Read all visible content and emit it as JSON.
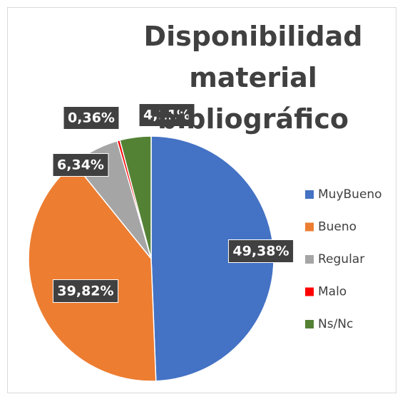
{
  "chart_data": {
    "type": "pie",
    "title": "Disponibilidad material bibliográfico",
    "categories": [
      "MuyBueno",
      "Bueno",
      "Regular",
      "Malo",
      "Ns/Nc"
    ],
    "values": [
      49.38,
      39.82,
      6.34,
      0.36,
      4.11
    ],
    "value_labels": [
      "49,38%",
      "39,82%",
      "6,34%",
      "0,36%",
      "4,11%"
    ],
    "colors": [
      "#4472c4",
      "#ed7d31",
      "#a5a5a5",
      "#ff0000",
      "#548235"
    ],
    "legend": "right"
  }
}
